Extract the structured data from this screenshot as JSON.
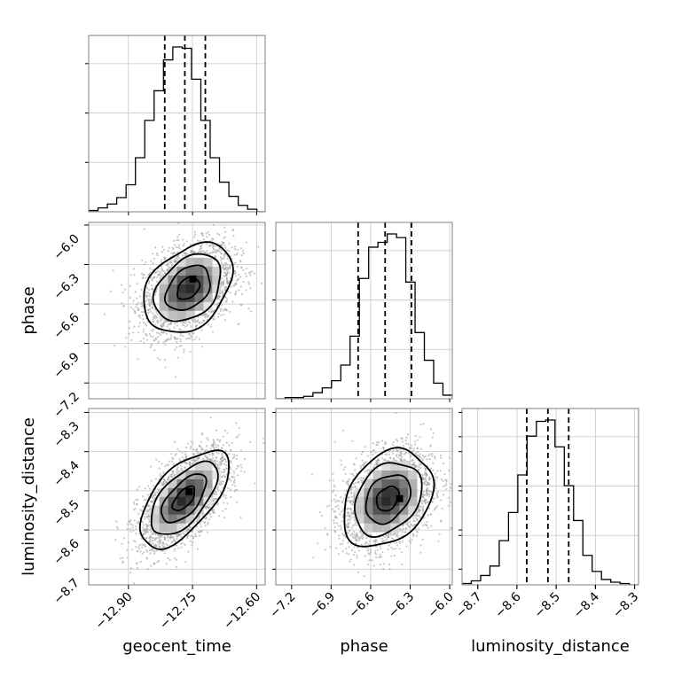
{
  "chart_data": {
    "type": "corner",
    "parameters": [
      "geocent_time",
      "phase",
      "luminosity_distance"
    ],
    "axis_labels": {
      "x": [
        "geocent_time",
        "phase",
        "luminosity_distance"
      ],
      "y": [
        "",
        "phase",
        "luminosity_distance"
      ]
    },
    "grid": true,
    "ranges": {
      "geocent_time": [
        -12.993,
        -12.58
      ],
      "phase": [
        -7.32,
        -5.98
      ],
      "luminosity_distance": [
        -8.74,
        -8.29
      ]
    },
    "ticks": {
      "geocent_time": [
        -12.9,
        -12.75,
        -12.6
      ],
      "phase": [
        -7.2,
        -6.9,
        -6.6,
        -6.3,
        -6.0
      ],
      "luminosity_distance": [
        -8.7,
        -8.6,
        -8.5,
        -8.4,
        -8.3
      ]
    },
    "tick_labels": {
      "geocent_time": [
        "−12.90",
        "−12.75",
        "−12.60"
      ],
      "phase": [
        "−7.2",
        "−6.9",
        "−6.6",
        "−6.3",
        "−6.0"
      ],
      "luminosity_distance": [
        "−8.7",
        "−8.6",
        "−8.5",
        "−8.4",
        "−8.3"
      ]
    },
    "marginals": [
      {
        "parameter": "geocent_time",
        "bin_edges": [
          -12.993,
          -12.9711,
          -12.9493,
          -12.9274,
          -12.9055,
          -12.8836,
          -12.8618,
          -12.8399,
          -12.818,
          -12.7961,
          -12.7743,
          -12.7524,
          -12.7305,
          -12.7087,
          -12.6868,
          -12.6649,
          -12.643,
          -12.6212,
          -12.5993,
          -12.58
        ],
        "counts": [
          1,
          3,
          6,
          11,
          21,
          42,
          71,
          94,
          118,
          128,
          127,
          103,
          71,
          42,
          23,
          12,
          5,
          2,
          0
        ],
        "quantiles": [
          -12.815,
          -12.768,
          -12.72
        ]
      },
      {
        "parameter": "phase",
        "bin_edges": [
          -7.32,
          -7.2495,
          -7.179,
          -7.1085,
          -7.038,
          -6.9675,
          -6.897,
          -6.8265,
          -6.756,
          -6.6855,
          -6.615,
          -6.5445,
          -6.474,
          -6.4035,
          -6.333,
          -6.2625,
          -6.192,
          -6.1215,
          -6.051,
          -5.98
        ],
        "counts": [
          0,
          1,
          1,
          2,
          5,
          9,
          15,
          28,
          52,
          100,
          126,
          130,
          137,
          134,
          97,
          55,
          32,
          13,
          3
        ],
        "quantiles": [
          -6.695,
          -6.49,
          -6.29
        ]
      },
      {
        "parameter": "luminosity_distance",
        "bin_edges": [
          -8.74,
          -8.7163,
          -8.6926,
          -8.6689,
          -8.6452,
          -8.6215,
          -8.5978,
          -8.5741,
          -8.5504,
          -8.5267,
          -8.503,
          -8.4793,
          -8.4556,
          -8.4319,
          -8.4082,
          -8.3845,
          -8.3608,
          -8.3371,
          -8.3134,
          -8.29
        ],
        "counts": [
          1,
          3,
          7,
          14,
          33,
          54,
          82,
          111,
          122,
          123,
          103,
          74,
          48,
          22,
          10,
          4,
          2,
          1,
          0
        ],
        "quantiles": [
          -8.575,
          -8.521,
          -8.468
        ]
      }
    ],
    "joints": [
      {
        "x": "geocent_time",
        "y": "phase",
        "mean": [
          -12.76,
          -6.48
        ],
        "std": [
          0.052,
          0.17
        ],
        "correlation": 0.35,
        "mode": [
          -12.749,
          -6.41
        ]
      },
      {
        "x": "geocent_time",
        "y": "luminosity_distance",
        "mean": [
          -12.77,
          -8.52
        ],
        "std": [
          0.052,
          0.062
        ],
        "correlation": 0.62,
        "mode": [
          -12.758,
          -8.502
        ]
      },
      {
        "x": "phase",
        "y": "luminosity_distance",
        "mean": [
          -6.47,
          -8.52
        ],
        "std": [
          0.17,
          0.062
        ],
        "correlation": 0.3,
        "mode": [
          -6.38,
          -8.52
        ]
      }
    ],
    "contour_levels_sigma": [
      0.5,
      1.0,
      1.5,
      2.0
    ]
  }
}
